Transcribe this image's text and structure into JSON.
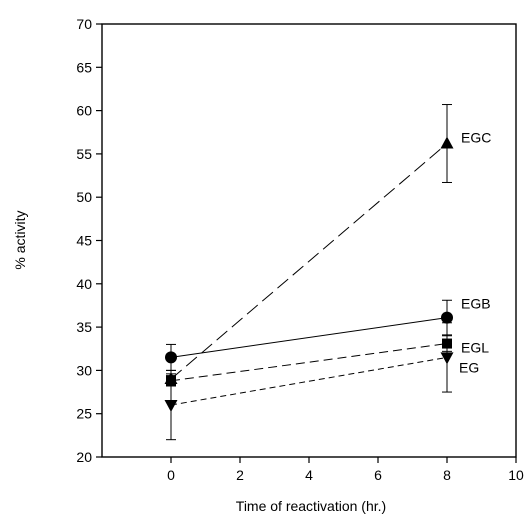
{
  "chart_data": {
    "type": "line",
    "title": "",
    "xlabel": "Time of reactivation (hr.)",
    "ylabel": "% activity",
    "xlim": [
      -2,
      10
    ],
    "ylim": [
      20,
      70
    ],
    "xticks": [
      0,
      2,
      4,
      6,
      8,
      10
    ],
    "yticks": [
      20,
      25,
      30,
      35,
      40,
      45,
      50,
      55,
      60,
      65,
      70
    ],
    "grid": false,
    "series": [
      {
        "name": "EGC",
        "marker": "triangle-up",
        "line_style": "long-dash",
        "x": [
          0,
          8
        ],
        "y": [
          29.0,
          56.2
        ],
        "error": [
          0.6,
          4.5
        ]
      },
      {
        "name": "EGB",
        "marker": "circle",
        "line_style": "solid",
        "x": [
          0,
          8
        ],
        "y": [
          31.5,
          36.1
        ],
        "error": [
          1.5,
          2.0
        ]
      },
      {
        "name": "EGL",
        "marker": "square",
        "line_style": "dash",
        "x": [
          0,
          8
        ],
        "y": [
          28.8,
          33.1
        ],
        "error": [
          0.6,
          0.9
        ]
      },
      {
        "name": "EG",
        "marker": "triangle-down",
        "line_style": "short-dash",
        "x": [
          0,
          8
        ],
        "y": [
          26.0,
          31.5
        ],
        "error": [
          4.0,
          4.0
        ]
      }
    ]
  }
}
